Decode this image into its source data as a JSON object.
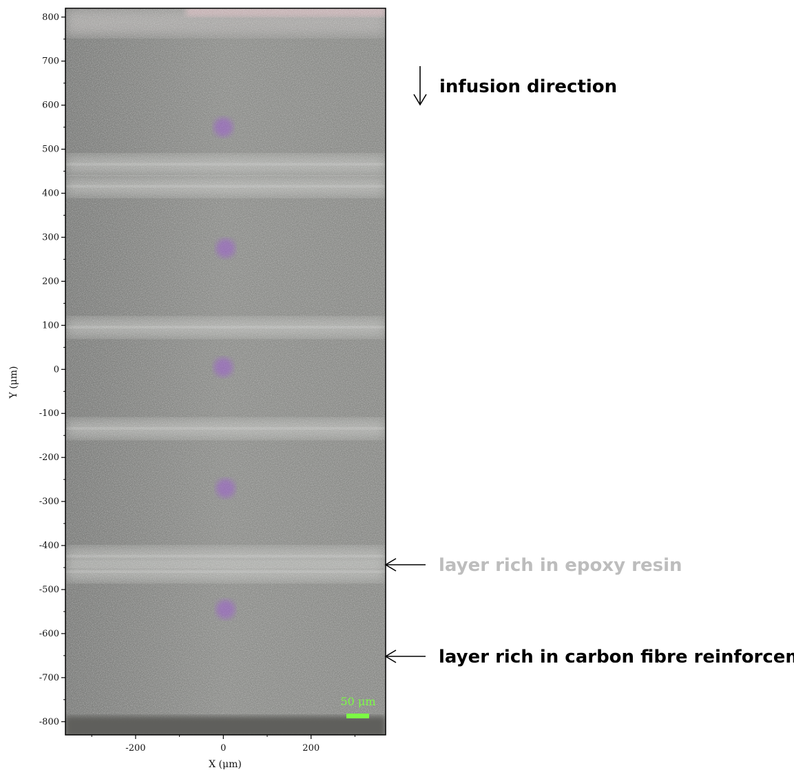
{
  "figure": {
    "x_axis_label": "X (μm)",
    "y_axis_label": "Y (μm)",
    "x_range": [
      -360,
      370
    ],
    "y_range": [
      -830,
      820
    ],
    "x_ticks": [
      -200,
      0,
      200
    ],
    "y_ticks": [
      800,
      700,
      600,
      500,
      400,
      300,
      200,
      100,
      0,
      -100,
      -200,
      -300,
      -400,
      -500,
      -600,
      -700,
      -800
    ],
    "scale_bar_label": "50 μm",
    "scale_bar_color": "#7cfc44",
    "image_tone": "#8a8b88"
  },
  "annotations": {
    "infusion": {
      "text": "infusion direction",
      "color": "#000000",
      "arrow": "down"
    },
    "epoxy": {
      "text": "layer rich in epoxy resin",
      "color": "#bdbdbd",
      "arrow": "left",
      "y_value": -435
    },
    "carbon": {
      "text": "layer rich in carbon fibre reinforcement",
      "color": "#000000",
      "arrow": "left",
      "y_value": -640
    }
  },
  "micrograph_bands": {
    "bright_bands_y": [
      465,
      415,
      95,
      -135,
      -425,
      -460
    ],
    "purple_marks": [
      {
        "x": 0,
        "y": 550
      },
      {
        "x": 5,
        "y": 275
      },
      {
        "x": 0,
        "y": 5
      },
      {
        "x": 5,
        "y": -270
      },
      {
        "x": 5,
        "y": -545
      }
    ]
  }
}
